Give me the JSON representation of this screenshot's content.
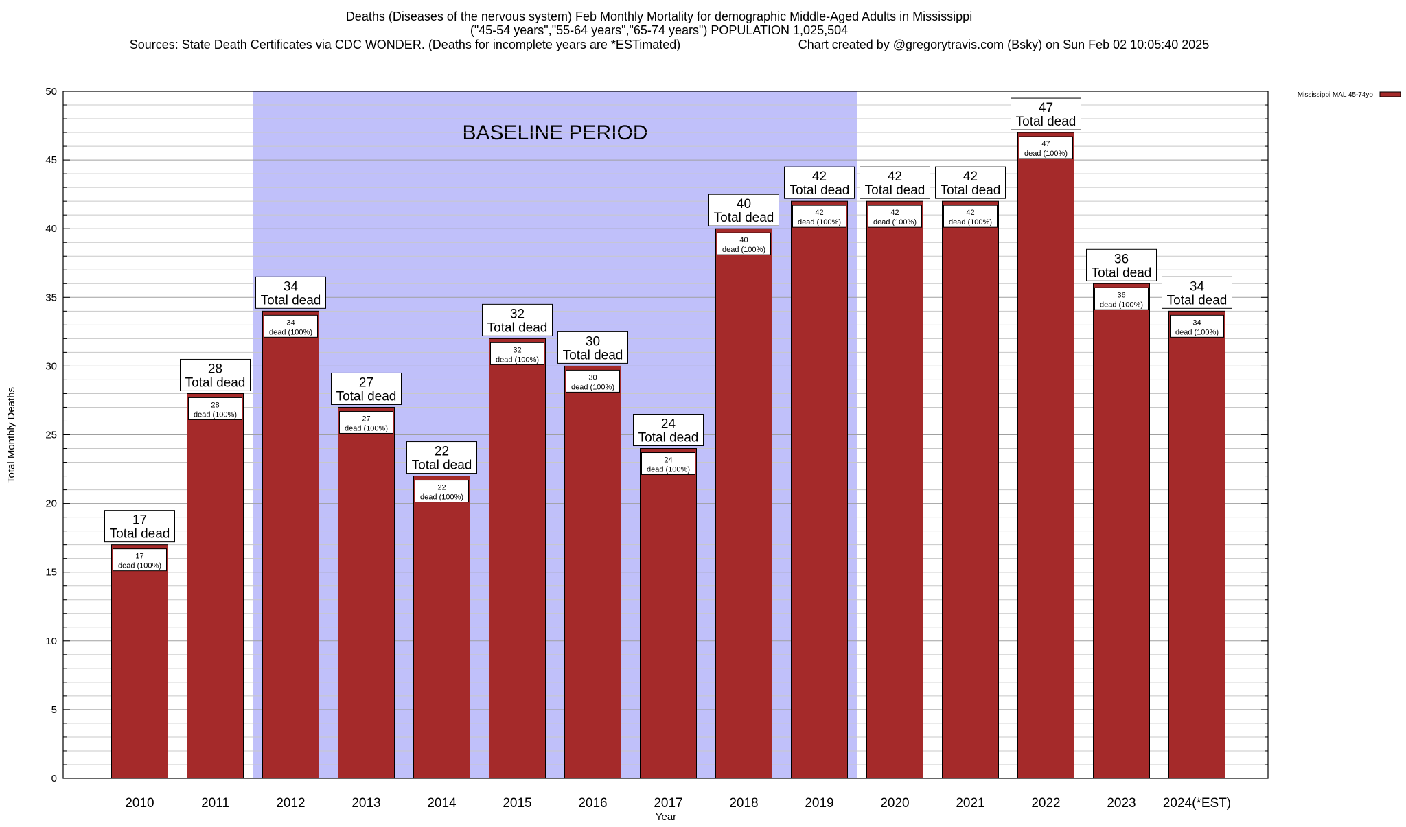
{
  "chart_data": {
    "type": "bar",
    "title_lines": [
      "Deaths (Diseases of the nervous system) Feb Monthly Mortality for demographic Middle-Aged Adults in Mississippi",
      "(\"45-54 years\",\"55-64 years\",\"65-74 years\") POPULATION 1,025,504",
      "Sources: State Death Certificates via CDC WONDER. (Deaths for incomplete years are *ESTimated)"
    ],
    "credit": "Chart created by @gregorytravis.com (Bsky) on Sun Feb 02 10:05:40 2025",
    "xlabel": "Year",
    "ylabel": "Total Monthly Deaths",
    "ylim": [
      0,
      50
    ],
    "y_ticks": [
      0,
      5,
      10,
      15,
      20,
      25,
      30,
      35,
      40,
      45,
      50
    ],
    "y_minor_step": 1,
    "grid": true,
    "categories": [
      "2010",
      "2011",
      "2012",
      "2013",
      "2014",
      "2015",
      "2016",
      "2017",
      "2018",
      "2019",
      "2020",
      "2021",
      "2022",
      "2023",
      "2024(*EST)"
    ],
    "series": [
      {
        "name": "Mississippi MAL 45-74yo",
        "color": "#a52a2a",
        "values": [
          17,
          28,
          34,
          27,
          22,
          32,
          30,
          24,
          40,
          42,
          42,
          42,
          47,
          36,
          34
        ]
      }
    ],
    "total_label_suffix": "Total dead",
    "inner_label_suffix": "dead (100%)",
    "baseline": {
      "label": "BASELINE PERIOD",
      "from": "2012",
      "to": "2019",
      "color": "#c0c0fa"
    },
    "legend_position": "top-right"
  }
}
